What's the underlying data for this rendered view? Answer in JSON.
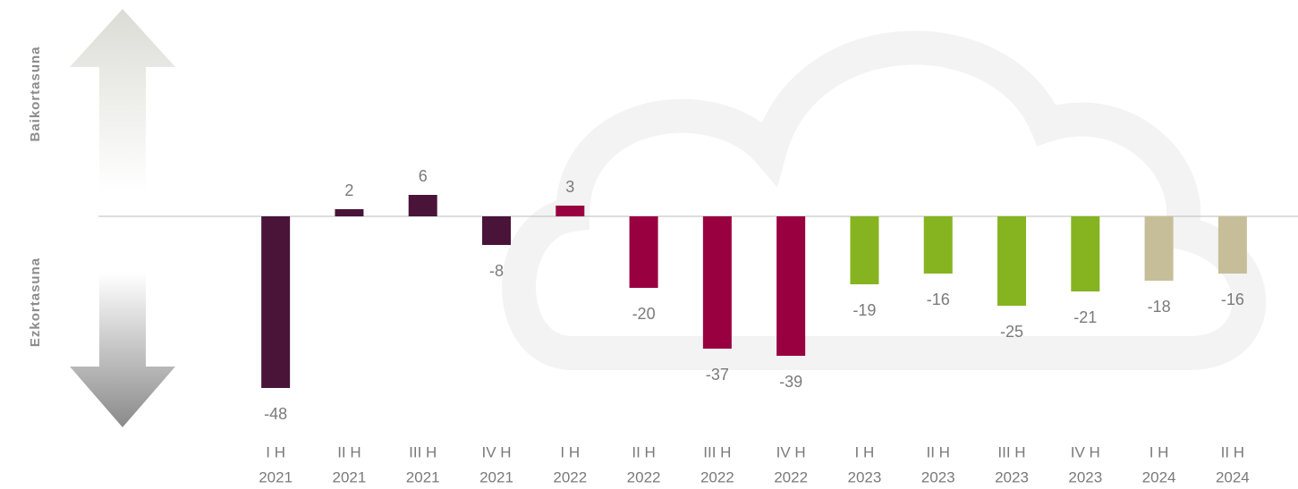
{
  "chart_data": {
    "type": "bar",
    "side_labels": [
      "Baikortasuna",
      "Ezkortasuna"
    ],
    "categories": [
      [
        "I H",
        "2021"
      ],
      [
        "II H",
        "2021"
      ],
      [
        "III H",
        "2021"
      ],
      [
        "IV H",
        "2021"
      ],
      [
        "I H",
        "2022"
      ],
      [
        "II H",
        "2022"
      ],
      [
        "III H",
        "2022"
      ],
      [
        "IV H",
        "2022"
      ],
      [
        "I H",
        "2023"
      ],
      [
        "II H",
        "2023"
      ],
      [
        "III H",
        "2023"
      ],
      [
        "IV H",
        "2023"
      ],
      [
        "I H",
        "2024"
      ],
      [
        "II H",
        "2024"
      ]
    ],
    "values": [
      -48,
      2,
      6,
      -8,
      3,
      -20,
      -37,
      -39,
      -19,
      -16,
      -25,
      -21,
      -18,
      -16
    ],
    "colors": [
      "#4a1439",
      "#4a1439",
      "#4a1439",
      "#4a1439",
      "#990040",
      "#990040",
      "#990040",
      "#990040",
      "#86b420",
      "#86b420",
      "#86b420",
      "#86b420",
      "#c6be99",
      "#c6be99"
    ],
    "ylim": [
      -60,
      60
    ]
  }
}
